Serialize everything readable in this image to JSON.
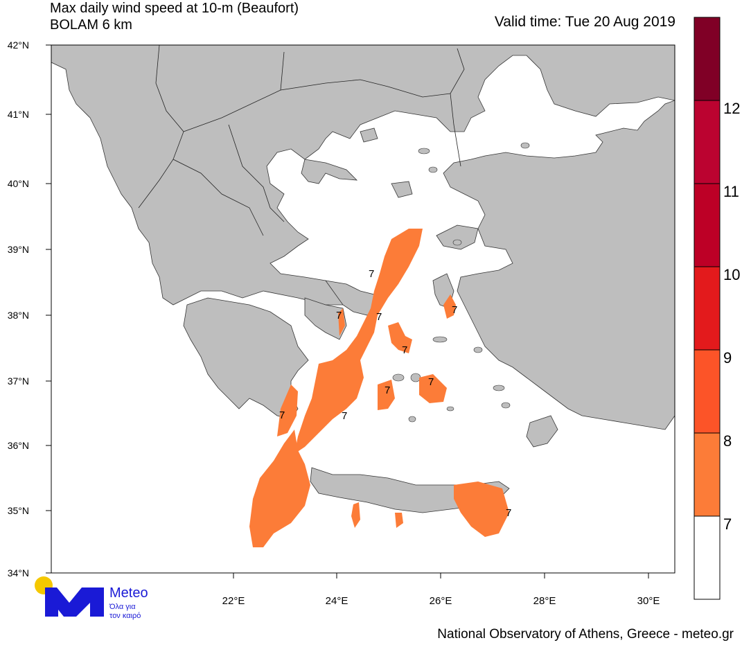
{
  "header": {
    "title_line1": "Max daily wind speed at 10-m (Beaufort)",
    "title_line2": "BOLAM 6 km",
    "valid_time": "Valid time: Tue 20 Aug 2019"
  },
  "axes": {
    "lat_labels": [
      "42°N",
      "41°N",
      "40°N",
      "39°N",
      "38°N",
      "37°N",
      "36°N",
      "35°N",
      "34°N"
    ],
    "lon_labels": [
      "22°E",
      "24°E",
      "26°E",
      "28°E",
      "30°E"
    ]
  },
  "colorbar": {
    "levels": [
      "7",
      "8",
      "9",
      "10",
      "11",
      "12"
    ],
    "colors": [
      "#ffffff",
      "#fc7c38",
      "#fc5428",
      "#e31a1c",
      "#bd0026",
      "#bb0330",
      "#800026"
    ]
  },
  "map_labels": {
    "contour_value": "7"
  },
  "colors": {
    "land": "#bebebe",
    "sea": "#ffffff",
    "wind_7_8": "#fc7c38"
  },
  "logo": {
    "name": "Meteo",
    "tagline_1": "Όλα για",
    "tagline_2": "τον καιρό"
  },
  "footer": {
    "credit": "National Observatory of Athens, Greece - meteo.gr"
  }
}
